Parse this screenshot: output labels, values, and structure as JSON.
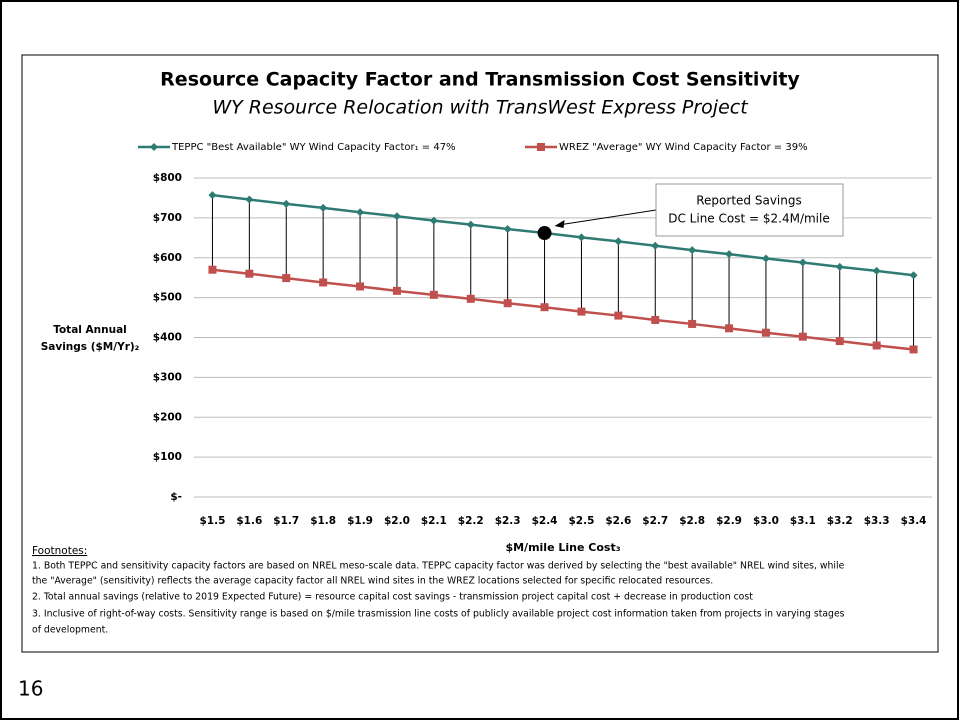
{
  "chart_data": {
    "type": "line",
    "title": "Resource Capacity Factor and Transmission Cost Sensitivity",
    "subtitle": "WY Resource Relocation with TransWest Express Project",
    "x_label": "$M/mile Line Cost₃",
    "y_label": [
      "Total Annual",
      "Savings ($M/Yr)₂"
    ],
    "categories": [
      "$1.5",
      "$1.6",
      "$1.7",
      "$1.8",
      "$1.9",
      "$2.0",
      "$2.1",
      "$2.2",
      "$2.3",
      "$2.4",
      "$2.5",
      "$2.6",
      "$2.7",
      "$2.8",
      "$2.9",
      "$3.0",
      "$3.1",
      "$3.2",
      "$3.3",
      "$3.4"
    ],
    "series": [
      {
        "name": "TEPPC \"Best Available\" WY Wind Capacity Factor₁ = 47%",
        "color": "#2e7b73",
        "marker": "diamond",
        "values": [
          757,
          746,
          735,
          725,
          714,
          704,
          693,
          683,
          672,
          662,
          651,
          641,
          630,
          619,
          609,
          598,
          588,
          577,
          567,
          556
        ]
      },
      {
        "name": "WREZ \"Average\" WY Wind Capacity Factor = 39%",
        "color": "#c0504d",
        "marker": "square",
        "values": [
          570,
          560,
          549,
          538,
          528,
          517,
          507,
          497,
          486,
          476,
          465,
          455,
          444,
          434,
          423,
          412,
          402,
          391,
          380,
          370
        ]
      }
    ],
    "ylim": [
      0,
      800
    ],
    "yticks": [
      {
        "value": 0,
        "label": "$-"
      },
      {
        "value": 100,
        "label": "$100"
      },
      {
        "value": 200,
        "label": "$200"
      },
      {
        "value": 300,
        "label": "$300"
      },
      {
        "value": 400,
        "label": "$400"
      },
      {
        "value": 500,
        "label": "$500"
      },
      {
        "value": 600,
        "label": "$600"
      },
      {
        "value": 700,
        "label": "$700"
      },
      {
        "value": 800,
        "label": "$800"
      }
    ],
    "grid": true,
    "legend": "top",
    "highlight": {
      "category_index": 9,
      "series_index": 0
    },
    "annotation": [
      "Reported Savings",
      "DC Line Cost = $2.4M/mile"
    ],
    "footnotes": {
      "heading": "Footnotes:",
      "lines": [
        "1. Both TEPPC and sensitivity capacity factors are based on NREL meso-scale data. TEPPC capacity factor was derived by selecting the \"best available\" NREL wind sites, while",
        "the \"Average\" (sensitivity) reflects the average capacity factor all NREL wind sites in the WREZ locations selected for specific relocated resources.",
        "2. Total annual savings (relative to 2019 Expected Future)  = resource capital cost savings - transmission project capital cost + decrease in production cost",
        "3. Inclusive of right-of-way costs. Sensitivity range is based on $/mile  trasmission line costs of publicly available project cost information taken from projects in varying stages",
        "of development."
      ]
    }
  },
  "page_number": "16"
}
